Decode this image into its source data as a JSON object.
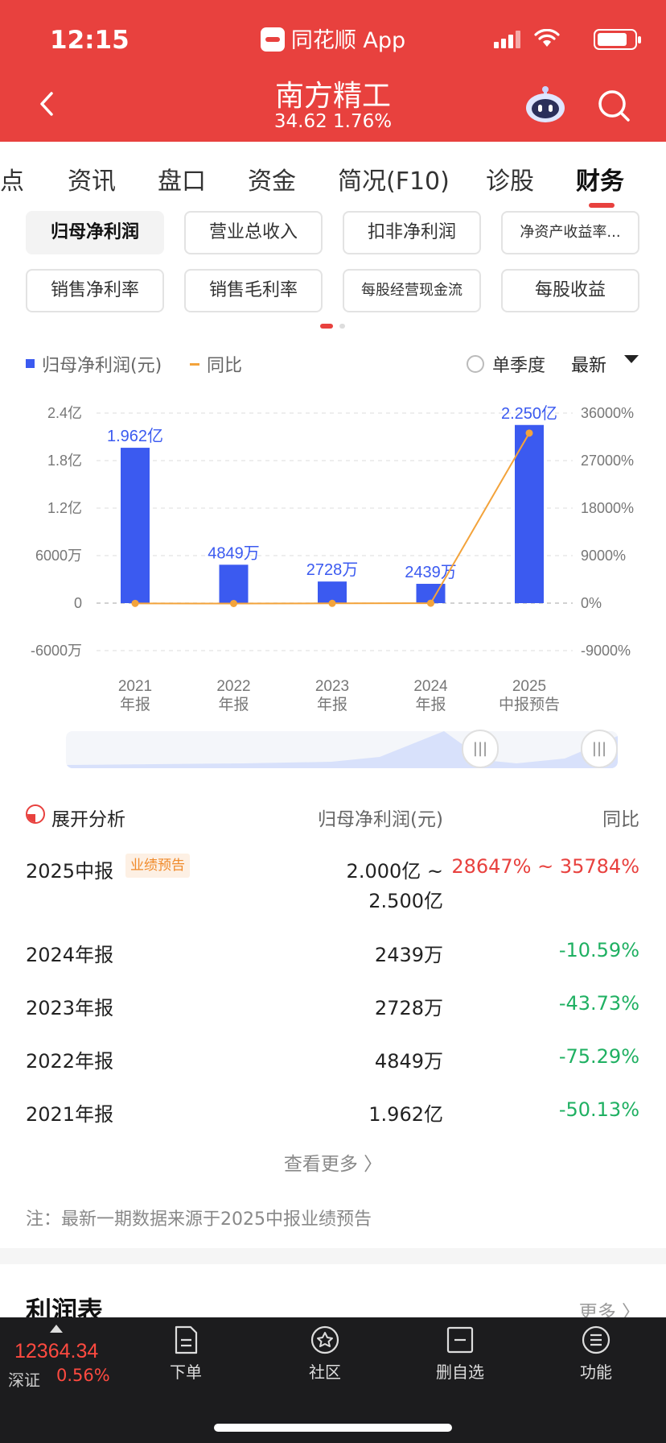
{
  "status_bar": {
    "time": "12:15",
    "app_name": "同花顺 App"
  },
  "header": {
    "stock_name": "南方精工",
    "price_change": "34.62 1.76%"
  },
  "tabs": [
    {
      "label": "点",
      "active": false
    },
    {
      "label": "资讯",
      "active": false
    },
    {
      "label": "盘口",
      "active": false
    },
    {
      "label": "资金",
      "active": false
    },
    {
      "label": "简况(F10)",
      "active": false
    },
    {
      "label": "诊股",
      "active": false
    },
    {
      "label": "财务",
      "active": true
    }
  ],
  "metrics": [
    {
      "label": "归母净利润",
      "active": true
    },
    {
      "label": "营业总收入",
      "active": false
    },
    {
      "label": "扣非净利润",
      "active": false
    },
    {
      "label": "净资产收益率...",
      "active": false
    },
    {
      "label": "销售净利率",
      "active": false
    },
    {
      "label": "销售毛利率",
      "active": false
    },
    {
      "label": "每股经营现金流",
      "active": false
    },
    {
      "label": "每股收益",
      "active": false
    }
  ],
  "legend": {
    "bar_label": "归母净利润(元)",
    "line_label": "同比",
    "single_quarter": "单季度",
    "latest": "最新"
  },
  "colors": {
    "brand_red": "#e8413e",
    "bar_blue": "#3b5af0",
    "line_orange": "#f3a33b",
    "down_green": "#1fb062"
  },
  "chart_data": {
    "type": "bar",
    "categories": [
      [
        "2021",
        "年报"
      ],
      [
        "2022",
        "年报"
      ],
      [
        "2023",
        "年报"
      ],
      [
        "2024",
        "年报"
      ],
      [
        "2025",
        "中报预告"
      ]
    ],
    "series": [
      {
        "name": "归母净利润(元)",
        "type": "bar",
        "values": [
          196200000,
          48490000,
          27280000,
          24390000,
          225000000
        ],
        "labels": [
          "1.962亿",
          "4849万",
          "2728万",
          "2439万",
          "2.250亿"
        ]
      },
      {
        "name": "同比",
        "type": "line",
        "axis": "right",
        "values": [
          -50.13,
          -75.29,
          -43.73,
          -10.59,
          32215
        ]
      }
    ],
    "y_left": {
      "ticks": [
        "2.4亿",
        "1.8亿",
        "1.2亿",
        "6000万",
        "0",
        "-6000万"
      ],
      "values": [
        240000000,
        180000000,
        120000000,
        60000000,
        0,
        -60000000
      ],
      "lim": [
        -60000000,
        240000000
      ]
    },
    "y_right": {
      "ticks": [
        "36000%",
        "27000%",
        "18000%",
        "9000%",
        "0%",
        "-9000%"
      ],
      "values": [
        36000,
        27000,
        18000,
        9000,
        0,
        -9000
      ],
      "lim": [
        -9000,
        36000
      ]
    },
    "grid": true
  },
  "table": {
    "header": {
      "title": "展开分析",
      "col_value": "归母净利润(元)",
      "col_yoy": "同比"
    },
    "rows": [
      {
        "label": "2025中报",
        "badge": "业绩预告",
        "value_line1": "2.000亿 ~",
        "value_line2": "2.500亿",
        "yoy": "28647% ~ 35784%",
        "trend": "up"
      },
      {
        "label": "2024年报",
        "value": "2439万",
        "yoy": "-10.59%",
        "trend": "down"
      },
      {
        "label": "2023年报",
        "value": "2728万",
        "yoy": "-43.73%",
        "trend": "down"
      },
      {
        "label": "2022年报",
        "value": "4849万",
        "yoy": "-75.29%",
        "trend": "down"
      },
      {
        "label": "2021年报",
        "value": "1.962亿",
        "yoy": "-50.13%",
        "trend": "down"
      }
    ],
    "more": "查看更多 〉",
    "note": "注：最新一期数据来源于2025中报业绩预告"
  },
  "profit_section": {
    "title": "利润表",
    "more": "更多 〉"
  },
  "bottom_bar": {
    "index_value": "12364.34",
    "index_name": "深证",
    "index_change": "0.56%",
    "nav": [
      {
        "label": "下单",
        "icon": "order-icon"
      },
      {
        "label": "社区",
        "icon": "community-icon"
      },
      {
        "label": "删自选",
        "icon": "remove-watchlist-icon"
      },
      {
        "label": "功能",
        "icon": "menu-icon"
      }
    ]
  }
}
